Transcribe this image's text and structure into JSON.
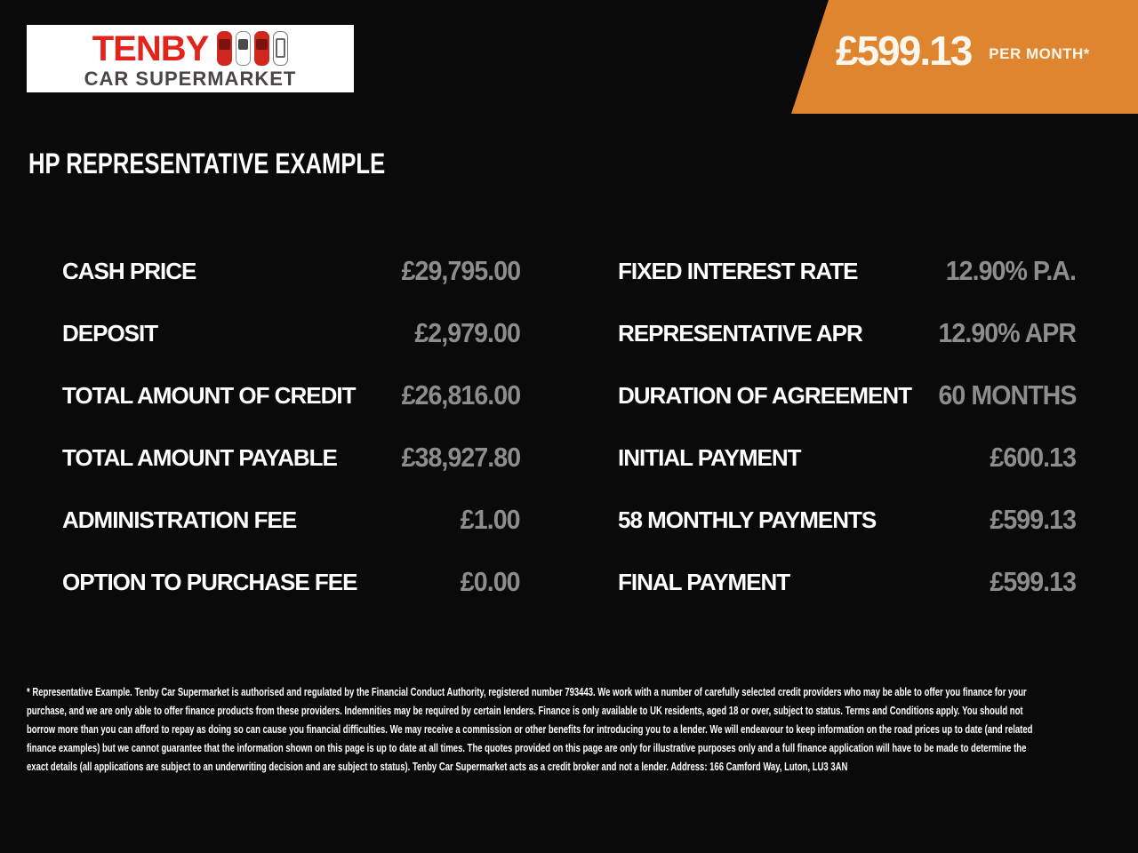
{
  "logo": {
    "title": "TENBY",
    "subtitle": "CAR SUPERMARKET",
    "car_icons": [
      "red-car-top-icon",
      "white-car-top-icon",
      "red-car-top-icon",
      "outline-car-top-icon"
    ]
  },
  "banner": {
    "price": "£599.13",
    "per": "PER MONTH*"
  },
  "heading": "HP REPRESENTATIVE EXAMPLE",
  "table": {
    "left": [
      {
        "label": "CASH PRICE",
        "value": "£29,795.00"
      },
      {
        "label": "DEPOSIT",
        "value": "£2,979.00"
      },
      {
        "label": "TOTAL AMOUNT OF CREDIT",
        "value": "£26,816.00"
      },
      {
        "label": "TOTAL AMOUNT PAYABLE",
        "value": "£38,927.80"
      },
      {
        "label": "ADMINISTRATION FEE",
        "value": "£1.00"
      },
      {
        "label": "OPTION TO PURCHASE FEE",
        "value": "£0.00"
      }
    ],
    "right": [
      {
        "label": "FIXED INTEREST RATE",
        "value": "12.90% P.A."
      },
      {
        "label": "REPRESENTATIVE APR",
        "value": "12.90% APR"
      },
      {
        "label": "DURATION OF AGREEMENT",
        "value": "60 MONTHS"
      },
      {
        "label": "INITIAL PAYMENT",
        "value": "£600.13"
      },
      {
        "label": "58 MONTHLY PAYMENTS",
        "value": "£599.13"
      },
      {
        "label": "FINAL PAYMENT",
        "value": "£599.13"
      }
    ]
  },
  "disclaimer": "* Representative Example. Tenby Car Supermarket is authorised and regulated by the Financial Conduct Authority, registered number 793443. We work with a number of carefully selected credit providers who may be able to offer you finance for your purchase, and we are only able to offer finance products from these providers. Indemnities may be required by certain lenders. Finance is only available to UK residents, aged 18 or over, subject to status. Terms and Conditions apply. You should not borrow more than you can afford to repay as doing so can cause you financial difficulties. We may receive a commission or other benefits for introducing you to a lender. We will endeavour to keep information on the road prices up to date (and related finance examples) but we cannot guarantee that the information shown on this page is up to date at all times. The quotes provided on this page are only for illustrative purposes only and a full finance application will have to be made to determine the exact details (all applications are subject to an underwriting decision and are subject to status). Tenby Car Supermarket acts as a credit broker and not a lender. Address: 166 Camford Way, Luton, LU3 3AN",
  "colors": {
    "background": "#0a0a0a",
    "accent_orange": "#e0852f",
    "value_gray": "#8d8d8d",
    "logo_red": "#e2241d",
    "logo_dark": "#4a4546"
  }
}
